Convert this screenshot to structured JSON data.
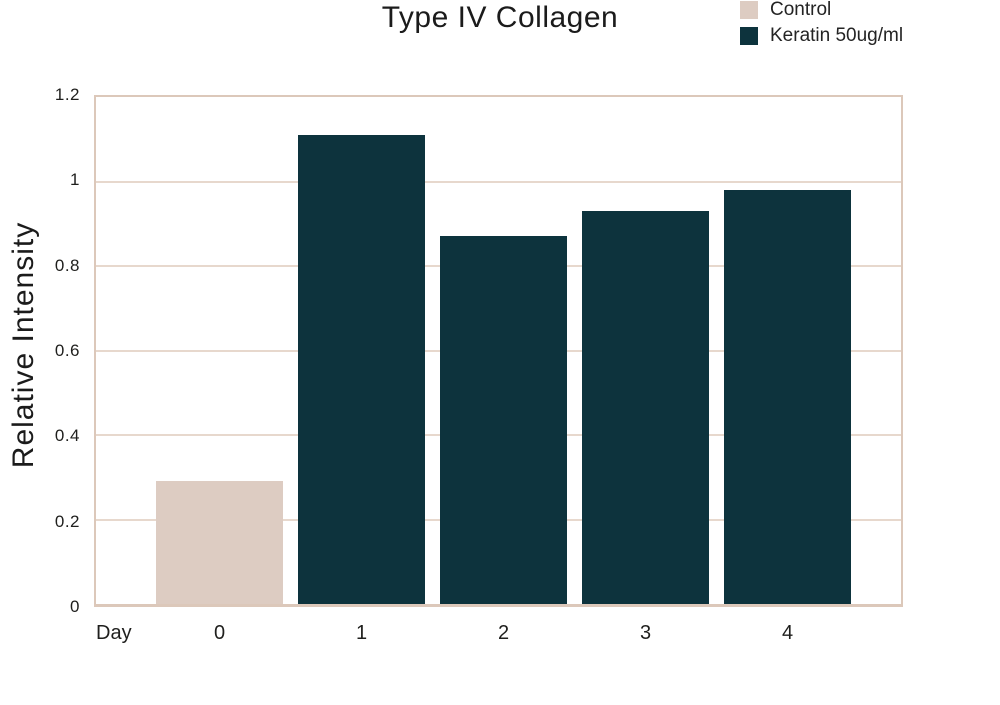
{
  "chart_data": {
    "type": "bar",
    "title": "Type IV Collagen",
    "xlabel": "Day",
    "ylabel": "Relative Intensity",
    "categories": [
      "0",
      "1",
      "2",
      "3",
      "4"
    ],
    "series": [
      {
        "name": "Control",
        "color": "#ddccc2",
        "values": [
          0.29,
          null,
          null,
          null,
          null
        ]
      },
      {
        "name": "Keratin 50ug/ml",
        "color": "#0d333d",
        "values": [
          null,
          1.11,
          0.87,
          0.93,
          0.98
        ]
      }
    ],
    "ylim": [
      0,
      1.2
    ],
    "yticks": [
      0,
      0.2,
      0.4,
      0.6,
      0.8,
      1,
      1.2
    ],
    "ytick_labels": [
      "0",
      "0.2",
      "0.4",
      "0.6",
      "0.8",
      "1",
      "1.2"
    ],
    "grid": "horizontal",
    "legend_position": "top-right",
    "colors": {
      "gridline": "#e7d8cd",
      "plot_border": "#dcc8ba",
      "text": "#1f1f1d",
      "background": "#ffffff"
    }
  }
}
